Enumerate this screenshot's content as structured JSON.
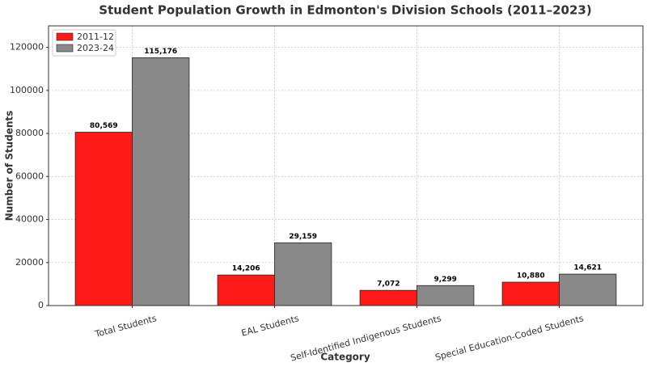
{
  "chart_data": {
    "type": "bar",
    "title": "Student Population Growth in Edmonton's Division Schools (2011–2023)",
    "x_label": "Category",
    "y_label": "Number of Students",
    "categories": [
      "Total Students",
      "EAL Students",
      "Self-Identified Indigenous Students",
      "Special Education-Coded Students"
    ],
    "series": [
      {
        "name": "2011-12",
        "color": "#ff1a1a",
        "values": [
          80569,
          14206,
          7072,
          10880
        ],
        "value_labels": [
          "80,569",
          "14,206",
          "7,072",
          "10,880"
        ]
      },
      {
        "name": "2023-24",
        "color": "#898989",
        "values": [
          115176,
          29159,
          9299,
          14621
        ],
        "value_labels": [
          "115,176",
          "29,159",
          "9,299",
          "14,621"
        ]
      }
    ],
    "ylim": [
      0,
      130000
    ],
    "yticks": [
      0,
      20000,
      40000,
      60000,
      80000,
      100000,
      120000
    ],
    "grid": true,
    "legend": "upper-left"
  }
}
